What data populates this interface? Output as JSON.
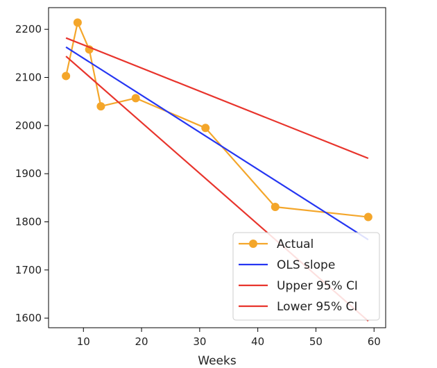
{
  "chart_data": {
    "type": "line",
    "xlabel": "Weeks",
    "ylabel": "",
    "xlim": [
      4,
      62
    ],
    "ylim": [
      1580,
      2245
    ],
    "xticks": [
      10,
      20,
      30,
      40,
      50,
      60
    ],
    "yticks": [
      1600,
      1700,
      1800,
      1900,
      2000,
      2100,
      2200
    ],
    "grid": false,
    "legend_position": "lower-right",
    "series": [
      {
        "name": "Actual",
        "color": "#f4a62a",
        "marker": "circle",
        "x": [
          7,
          9,
          11,
          13,
          19,
          31,
          43,
          59
        ],
        "y": [
          2103,
          2214,
          2158,
          2040,
          2057,
          1995,
          1831,
          1810
        ]
      },
      {
        "name": "OLS slope",
        "color": "#2536f2",
        "marker": "none",
        "x": [
          7,
          59
        ],
        "y": [
          2163,
          1763
        ]
      },
      {
        "name": "Upper 95% CI",
        "color": "#e8342c",
        "marker": "none",
        "x": [
          7,
          59
        ],
        "y": [
          2182,
          1932
        ]
      },
      {
        "name": "Lower 95% CI",
        "color": "#e8342c",
        "marker": "none",
        "x": [
          7,
          59
        ],
        "y": [
          2144,
          1594
        ]
      }
    ]
  }
}
